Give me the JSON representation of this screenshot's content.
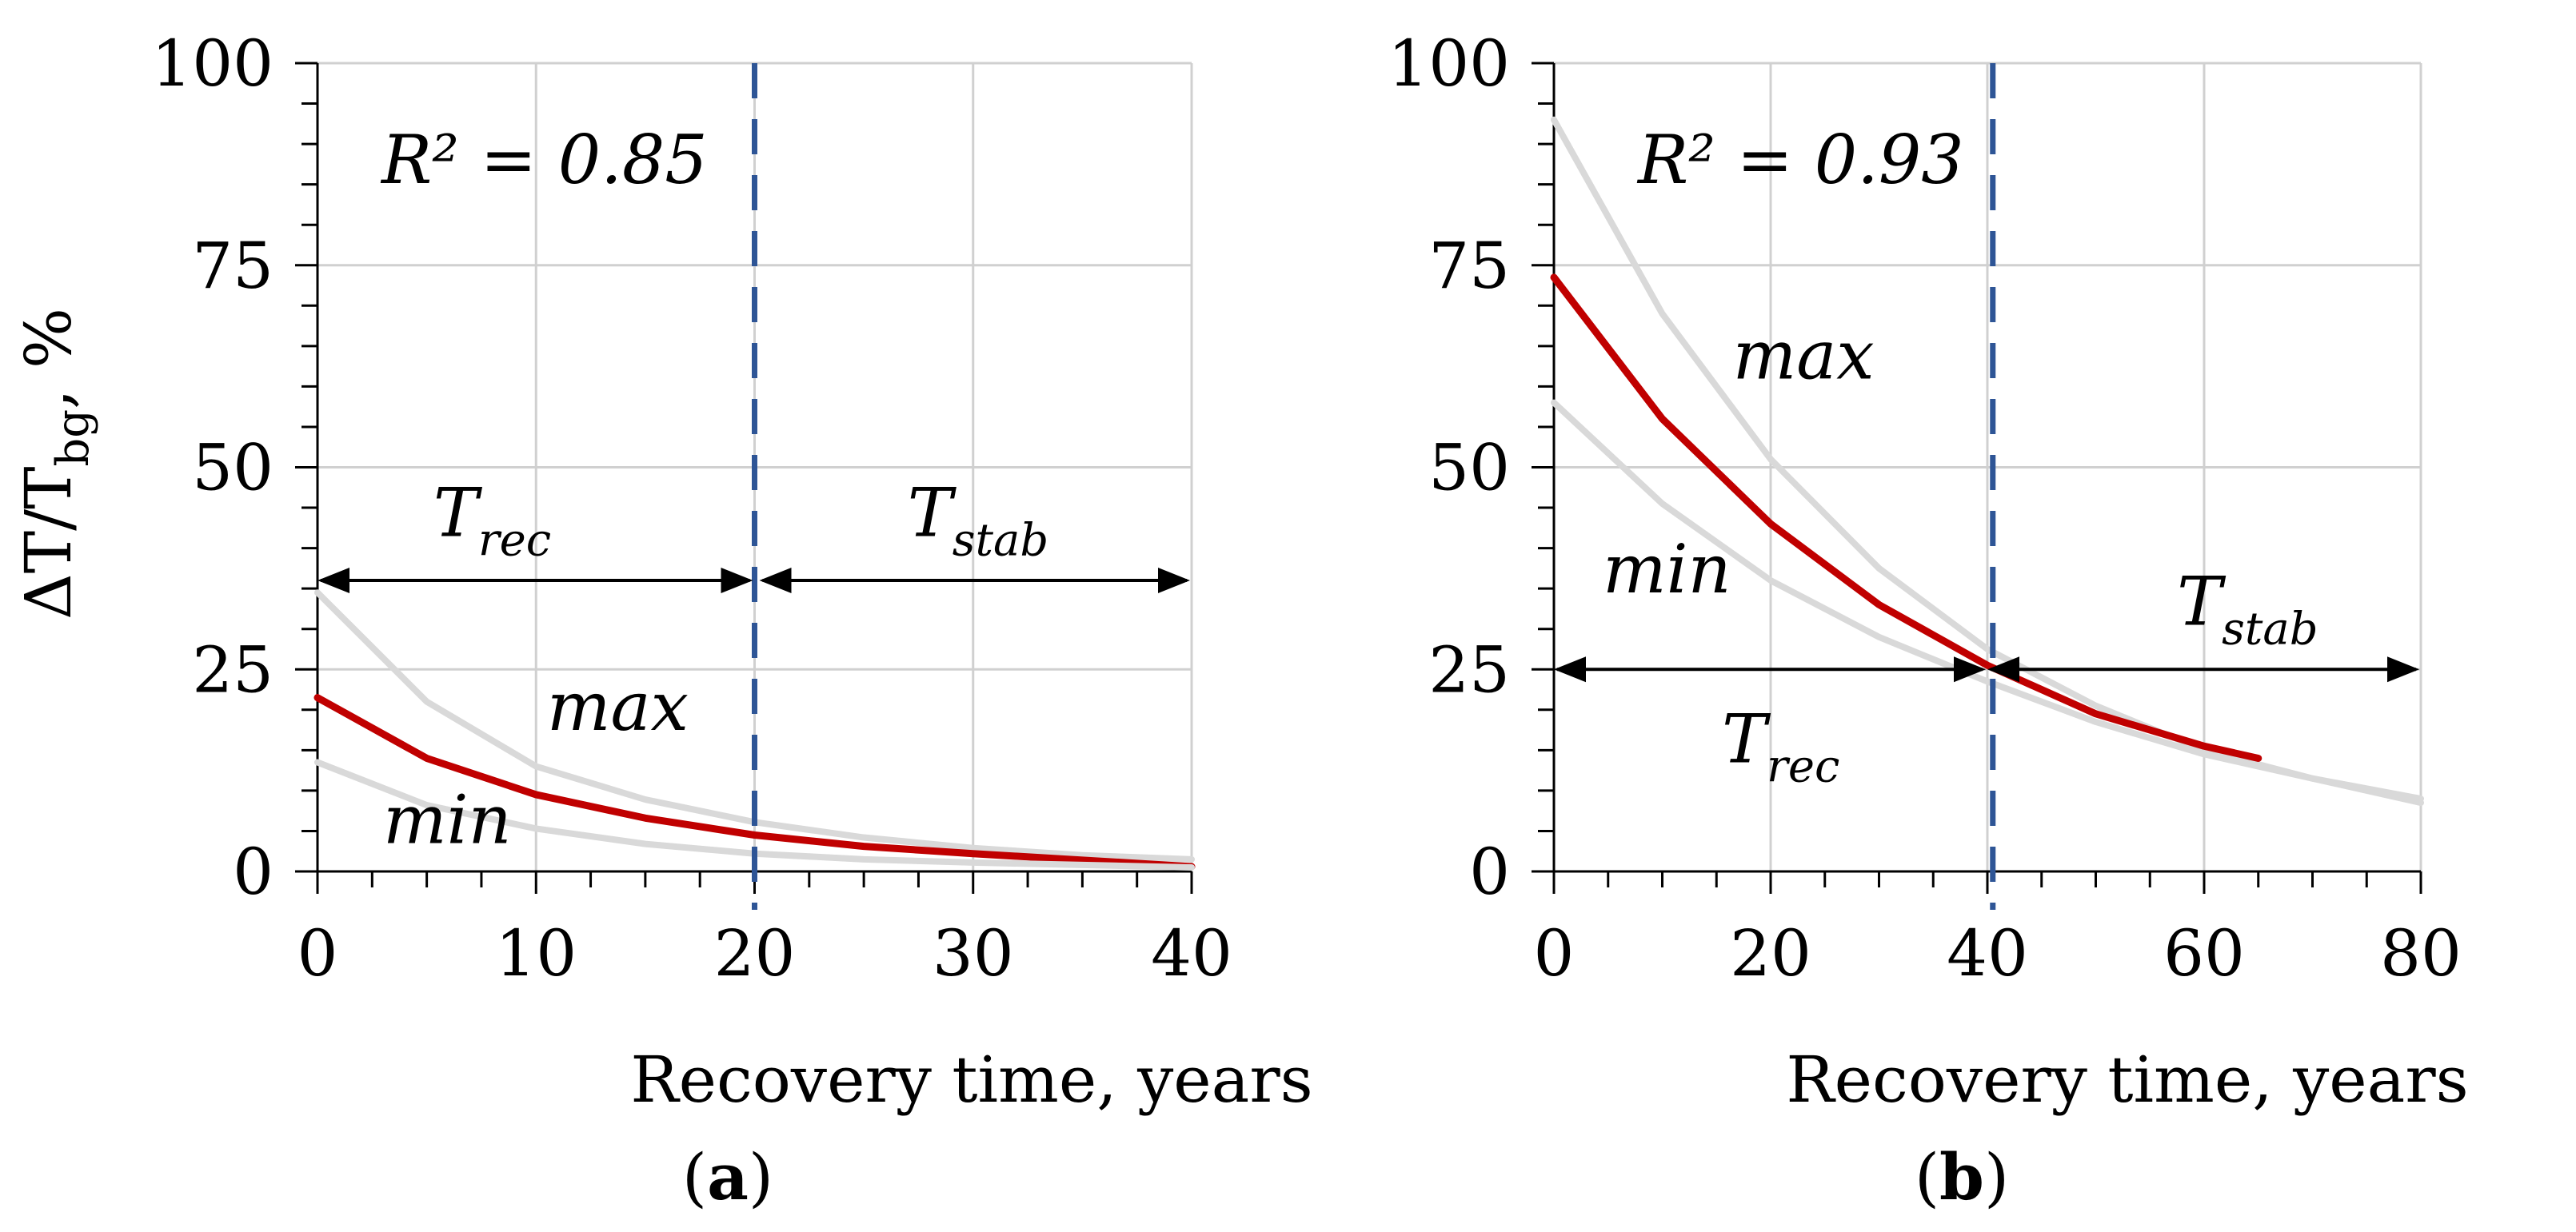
{
  "chart_data": [
    {
      "type": "line",
      "panel_label": "(a)",
      "panel_letter": "a",
      "xlabel": "Recovery time, years",
      "ylabel": "ΔT/T",
      "ylabel_sub": "bg",
      "ylabel_unit": ", %",
      "xlim": [
        0,
        40
      ],
      "ylim": [
        0,
        100
      ],
      "xticks": [
        0,
        10,
        20,
        30,
        40
      ],
      "yticks": [
        0,
        25,
        50,
        75,
        100
      ],
      "xtick_labels": [
        "0",
        "10",
        "20",
        "30",
        "40"
      ],
      "ytick_labels": [
        "0",
        "25",
        "50",
        "75",
        "100"
      ],
      "grid": true,
      "r2": {
        "text": "R² = 0.85"
      },
      "series": [
        {
          "name": "max",
          "role": "bound",
          "color": "#d9d9d9",
          "x": [
            0,
            5,
            10,
            15,
            20,
            25,
            30,
            35,
            40
          ],
          "y": [
            34.5,
            21,
            13,
            8.9,
            6.1,
            4.2,
            2.9,
            2.0,
            1.5
          ]
        },
        {
          "name": "fit",
          "role": "fit",
          "color": "#c00000",
          "x": [
            0,
            5,
            10,
            15,
            20,
            25,
            30,
            35,
            40
          ],
          "y": [
            21.5,
            14,
            9.5,
            6.6,
            4.5,
            3.1,
            2.2,
            1.4,
            0.6
          ]
        },
        {
          "name": "min",
          "role": "bound",
          "color": "#d9d9d9",
          "x": [
            0,
            5,
            10,
            15,
            20,
            25,
            30,
            35,
            40
          ],
          "y": [
            13.5,
            8.2,
            5.3,
            3.4,
            2.2,
            1.5,
            1.1,
            0.8,
            0.5
          ]
        }
      ],
      "curve_labels": [
        {
          "text": "max",
          "x": 10.5,
          "y": 17.5
        },
        {
          "text": "min",
          "x": 3.0,
          "y": 3.5
        }
      ],
      "vline": {
        "x": 20,
        "color": "#2e5596"
      },
      "annotations": [
        {
          "base": "T",
          "sub": "rec",
          "from": 0,
          "to": 20,
          "y": 36,
          "label_x": 5.3,
          "label_y": 41.5
        },
        {
          "base": "T",
          "sub": "stab",
          "from": 20,
          "to": 40,
          "y": 36,
          "label_x": 27.0,
          "label_y": 41.5
        }
      ]
    },
    {
      "type": "line",
      "panel_label": "(b)",
      "panel_letter": "b",
      "xlabel": "Recovery time, years",
      "xlim": [
        0,
        80
      ],
      "ylim": [
        0,
        100
      ],
      "xticks": [
        0,
        20,
        40,
        60,
        80
      ],
      "yticks": [
        0,
        25,
        50,
        75,
        100
      ],
      "xtick_labels": [
        "0",
        "20",
        "40",
        "60",
        "80"
      ],
      "ytick_labels": [
        "0",
        "25",
        "50",
        "75",
        "100"
      ],
      "grid": true,
      "r2": {
        "text": "R² = 0.93"
      },
      "series": [
        {
          "name": "max",
          "role": "bound",
          "color": "#d9d9d9",
          "x": [
            0,
            10,
            20,
            30,
            40,
            50,
            60,
            70,
            80
          ],
          "y": [
            93,
            69,
            51,
            37.5,
            27.5,
            20.5,
            15,
            11.5,
            8.5
          ]
        },
        {
          "name": "fit",
          "role": "fit",
          "color": "#c00000",
          "x": [
            0,
            10,
            20,
            30,
            40,
            50,
            60,
            65
          ],
          "y": [
            73.5,
            56,
            43,
            33,
            25.5,
            19.5,
            15.5,
            14
          ]
        },
        {
          "name": "min",
          "role": "bound",
          "color": "#d9d9d9",
          "x": [
            0,
            10,
            20,
            30,
            40,
            50,
            60,
            70,
            80
          ],
          "y": [
            58,
            45.5,
            36,
            29,
            23.5,
            18.5,
            14.5,
            11.5,
            9.0
          ]
        }
      ],
      "curve_labels": [
        {
          "text": "max",
          "x": 16.5,
          "y": 61
        },
        {
          "text": "min",
          "x": 4.5,
          "y": 34.5
        }
      ],
      "vline": {
        "x": 40.5,
        "color": "#2e5596"
      },
      "annotations": [
        {
          "base": "T",
          "sub": "rec",
          "from": 0,
          "to": 40,
          "y": 25,
          "label_x": 15.5,
          "label_y": 13.5
        },
        {
          "base": "T",
          "sub": "stab",
          "from": 40,
          "to": 80,
          "y": 25,
          "label_x": 57.5,
          "label_y": 30.5
        }
      ]
    }
  ]
}
